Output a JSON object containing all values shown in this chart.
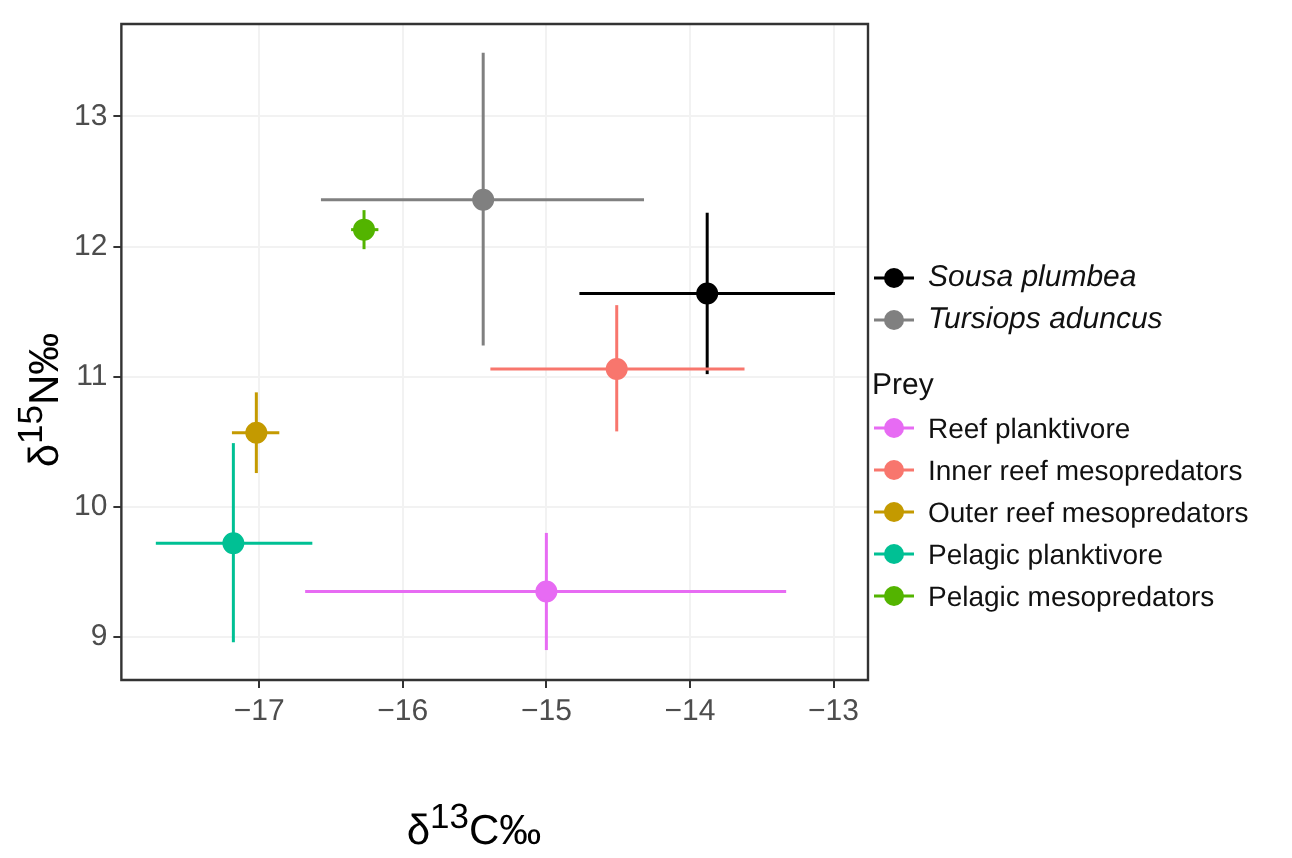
{
  "chart_data": {
    "type": "scatter",
    "xlabel": "δ$^{13}$C‰",
    "ylabel": "δ$^{15}$N‰",
    "legend_title": "Prey",
    "xlim": [
      -17.96,
      -12.76
    ],
    "ylim": [
      8.67,
      13.71
    ],
    "xticks": [
      -17,
      -16,
      -15,
      -14,
      -13
    ],
    "yticks": [
      9,
      10,
      11,
      12,
      13
    ],
    "grid": true,
    "legend": "right",
    "marker": "circle",
    "series": [
      {
        "name": "Sousa plumbea",
        "color": "#000000",
        "x": [
          -13.88
        ],
        "values": [
          11.64
        ],
        "errors": [
          [
            11.02,
            12.26
          ]
        ],
        "xerrors": [
          [
            -14.77,
            -12.99
          ]
        ]
      },
      {
        "name": "Tursiops aduncus",
        "color": "#808080",
        "x": [
          -15.44
        ],
        "values": [
          12.36
        ],
        "errors": [
          [
            11.24,
            13.49
          ]
        ],
        "xerrors": [
          [
            -16.57,
            -14.32
          ]
        ]
      },
      {
        "name": "Reef planktivore",
        "color": "#e76bf3",
        "x": [
          -15.0
        ],
        "values": [
          9.35
        ],
        "errors": [
          [
            8.9,
            9.8
          ]
        ],
        "xerrors": [
          [
            -16.68,
            -13.33
          ]
        ]
      },
      {
        "name": "Inner reef mesopredators",
        "color": "#f8766d",
        "x": [
          -14.51
        ],
        "values": [
          11.06
        ],
        "errors": [
          [
            10.58,
            11.55
          ]
        ],
        "xerrors": [
          [
            -15.39,
            -13.62
          ]
        ]
      },
      {
        "name": "Outer reef mesopredators",
        "color": "#c49a00",
        "x": [
          -17.02
        ],
        "values": [
          10.57
        ],
        "errors": [
          [
            10.26,
            10.88
          ]
        ],
        "xerrors": [
          [
            -17.19,
            -16.86
          ]
        ]
      },
      {
        "name": "Pelagic planktivore",
        "color": "#00c094",
        "x": [
          -17.18
        ],
        "values": [
          9.72
        ],
        "errors": [
          [
            8.96,
            10.49
          ]
        ],
        "xerrors": [
          [
            -17.72,
            -16.63
          ]
        ]
      },
      {
        "name": "Pelagic mesopredators",
        "color": "#53b400",
        "x": [
          -16.27
        ],
        "values": [
          12.13
        ],
        "errors": [
          [
            11.98,
            12.28
          ]
        ],
        "xerrors": [
          [
            -16.36,
            -16.17
          ]
        ]
      }
    ]
  }
}
